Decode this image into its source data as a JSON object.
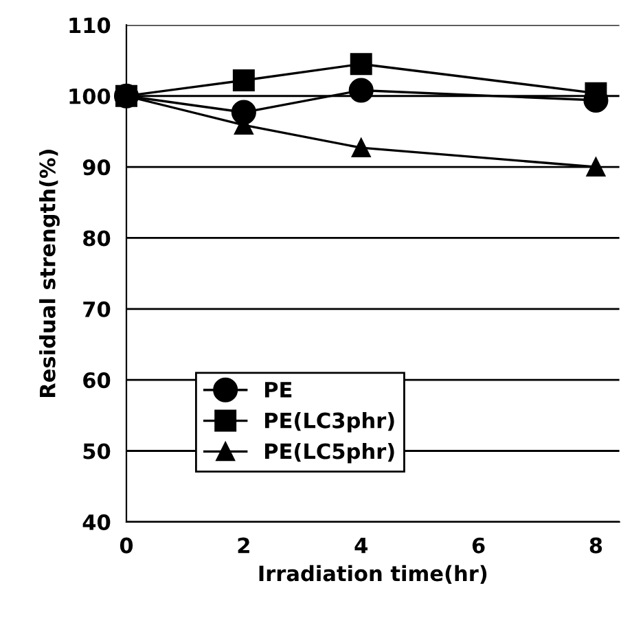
{
  "chart_data": {
    "type": "line",
    "xlabel": "Irradiation time(hr)",
    "ylabel": "Residual strength(%)",
    "x": [
      0,
      2,
      4,
      8
    ],
    "series": [
      {
        "name": "PE",
        "color": "#000000",
        "marker": "circle",
        "values": [
          100,
          97.7,
          100.8,
          99.4
        ]
      },
      {
        "name": "PE(LC3phr)",
        "color": "#000000",
        "marker": "square",
        "values": [
          100,
          102.2,
          104.5,
          100.4
        ]
      },
      {
        "name": "PE(LC5phr)",
        "color": "#000000",
        "marker": "triangle",
        "values": [
          100,
          95.9,
          92.7,
          90.0
        ]
      }
    ],
    "xlim": [
      0,
      8.4
    ],
    "xticks": [
      0,
      2,
      4,
      6,
      8
    ],
    "ylim": [
      40,
      110
    ],
    "yticks": [
      40,
      50,
      60,
      70,
      80,
      90,
      100,
      110
    ],
    "grid": "y",
    "legend": "lower left",
    "line_style": "solid"
  }
}
